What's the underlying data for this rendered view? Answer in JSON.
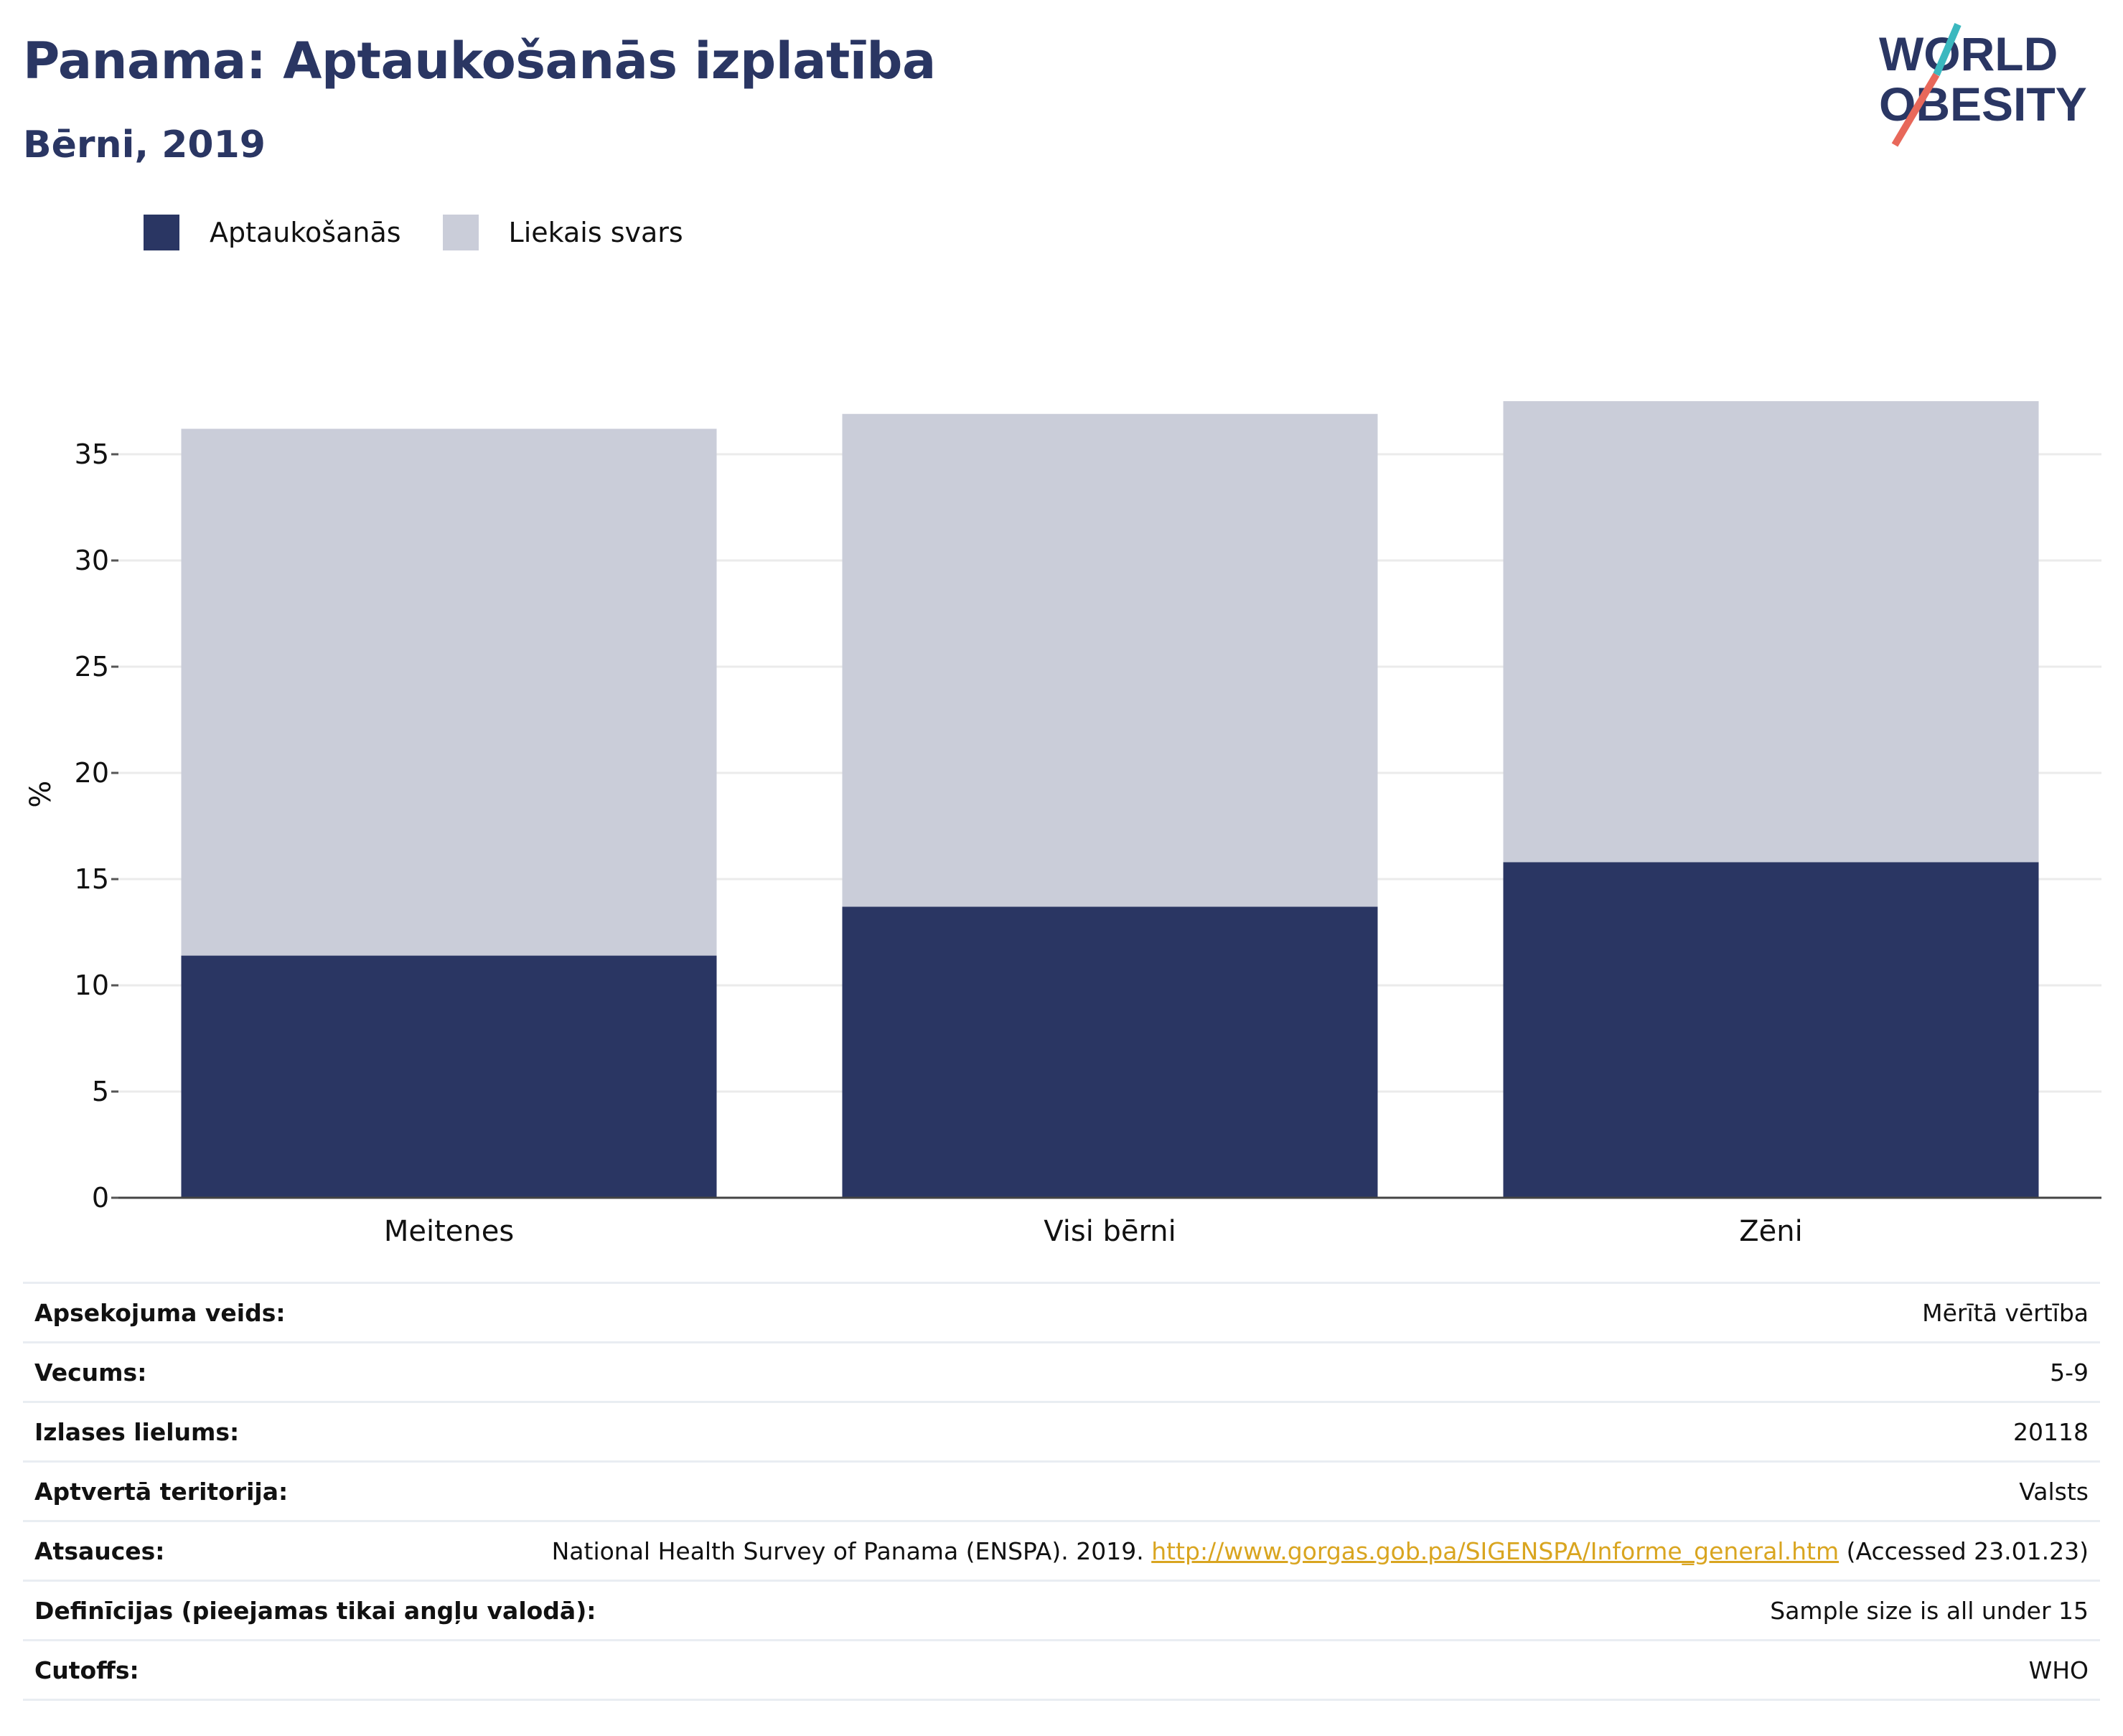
{
  "header": {
    "title": "Panama: Aptaukošanās izplatība",
    "subtitle": "Bērni, 2019"
  },
  "logo": {
    "line1": "WORLD",
    "line2": "OBESITY",
    "icon": "world-obesity-logo"
  },
  "colors": {
    "obesity": "#2a3663",
    "overweight": "#cacdd9",
    "title": "#2a3663",
    "link": "#d9a520"
  },
  "chart_data": {
    "type": "bar",
    "stacked": true,
    "categories": [
      "Meitenes",
      "Visi bērni",
      "Zēni"
    ],
    "series": [
      {
        "name": "Aptaukošanās",
        "values": [
          11.4,
          13.7,
          15.8
        ],
        "color": "#2a3663"
      },
      {
        "name": "Liekais svars",
        "values": [
          24.8,
          23.2,
          21.7
        ],
        "color": "#cacdd9"
      }
    ],
    "ylabel": "%",
    "xlabel": "",
    "ylim": [
      0,
      38
    ],
    "yticks": [
      0,
      5,
      10,
      15,
      20,
      25,
      30,
      35
    ],
    "grid": true,
    "legend_position": "top-left"
  },
  "table": {
    "rows": [
      {
        "key": "Apsekojuma veids:",
        "value": "Mērītā vērtība"
      },
      {
        "key": "Vecums:",
        "value": "5-9"
      },
      {
        "key": "Izlases lielums:",
        "value": "20118"
      },
      {
        "key": "Aptvertā teritorija:",
        "value": "Valsts"
      },
      {
        "key": "Atsauces:",
        "value_pre": "National Health Survey of Panama (ENSPA). 2019. ",
        "link": "http://www.gorgas.gob.pa/SIGENSPA/Informe_general.htm",
        "value_post": " (Accessed 23.01.23)"
      },
      {
        "key": "Definīcijas (pieejamas tikai angļu valodā):",
        "value": "Sample size is all under 15"
      },
      {
        "key": "Cutoffs:",
        "value": "WHO"
      }
    ]
  }
}
